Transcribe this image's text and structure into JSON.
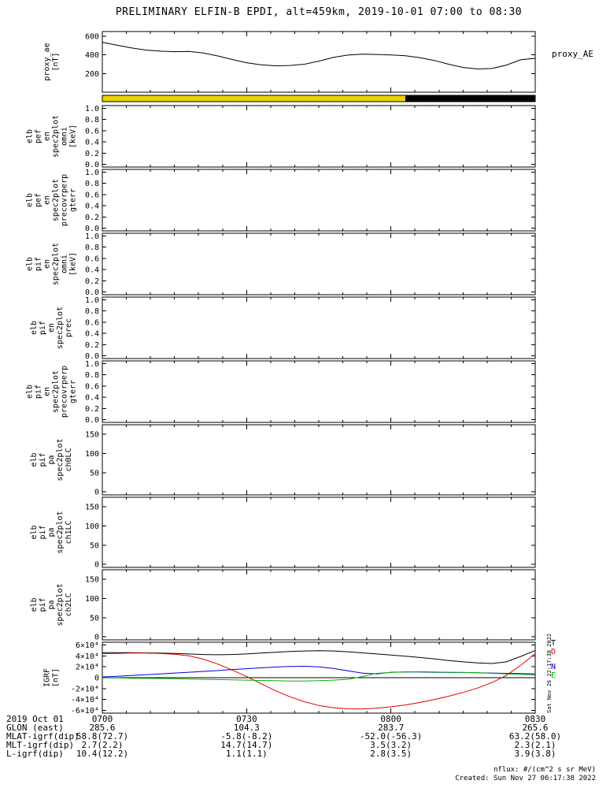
{
  "title": "PRELIMINARY ELFIN-B EPDI, alt=459km, 2019-10-01 07:00 to 08:30",
  "time_axis": {
    "start_min": 0,
    "end_min": 90,
    "major_ticks": [
      {
        "min": 0,
        "label": "0700"
      },
      {
        "min": 30,
        "label": "0730"
      },
      {
        "min": 60,
        "label": "0800"
      },
      {
        "min": 90,
        "label": "0830"
      }
    ]
  },
  "right_labels": {
    "proxy": "proxy_AE",
    "igrf": [
      {
        "label": "T",
        "color": "#000000"
      },
      {
        "label": "D",
        "color": "#dd0000"
      },
      {
        "label": "N",
        "color": "#0000dd"
      },
      {
        "label": "E",
        "color": "#00b400"
      }
    ]
  },
  "ytick_presets": {
    "proxy": [
      {
        "v": 200,
        "l": "200"
      },
      {
        "v": 400,
        "l": "400"
      },
      {
        "v": 600,
        "l": "600"
      }
    ],
    "frac": [
      {
        "v": 0.0,
        "l": "0.0"
      },
      {
        "v": 0.2,
        "l": "0.2"
      },
      {
        "v": 0.4,
        "l": "0.4"
      },
      {
        "v": 0.6,
        "l": "0.6"
      },
      {
        "v": 0.8,
        "l": "0.8"
      },
      {
        "v": 1.0,
        "l": "1.0"
      }
    ],
    "pa": [
      {
        "v": 0,
        "l": "0"
      },
      {
        "v": 50,
        "l": "50"
      },
      {
        "v": 100,
        "l": "100"
      },
      {
        "v": 150,
        "l": "150"
      }
    ],
    "igrf": [
      {
        "v": -60000,
        "l": "-6×10⁴"
      },
      {
        "v": -40000,
        "l": "-4×10⁴"
      },
      {
        "v": -20000,
        "l": "-2×10⁴"
      },
      {
        "v": 0,
        "l": "0"
      },
      {
        "v": 20000,
        "l": "2×10⁴"
      },
      {
        "v": 40000,
        "l": "4×10⁴"
      },
      {
        "v": 60000,
        "l": "6×10⁴"
      }
    ]
  },
  "panels": [
    {
      "id": "proxy-ae",
      "type": "line",
      "ylabel_lines": [
        "proxy_ae",
        "[nT]"
      ],
      "yticks": "proxy",
      "ylim": [
        0,
        650
      ],
      "chart": 0
    },
    {
      "id": "status-bar",
      "type": "colorbar",
      "chart": 1
    },
    {
      "id": "elb-pef-en-omni",
      "type": "empty",
      "ylabel_lines": [
        "elb",
        "pef",
        "en",
        "spec2plot",
        "omni",
        "[keV]"
      ],
      "yticks": "frac",
      "ylim": [
        -0.05,
        1.05
      ]
    },
    {
      "id": "elb-pef-en-precovrperp-gterr",
      "type": "empty",
      "ylabel_lines": [
        "elb",
        "pef",
        "en",
        "spec2plot",
        "precovrperp",
        "gterr"
      ],
      "yticks": "frac",
      "ylim": [
        -0.05,
        1.05
      ]
    },
    {
      "id": "elb-pif-en-omni",
      "type": "empty",
      "ylabel_lines": [
        "elb",
        "pif",
        "en",
        "spec2plot",
        "omni",
        "[keV]"
      ],
      "yticks": "frac",
      "ylim": [
        -0.05,
        1.05
      ]
    },
    {
      "id": "elb-pif-en-prec",
      "type": "empty",
      "ylabel_lines": [
        "elb",
        "pif",
        "en",
        "spec2plot",
        "prec"
      ],
      "yticks": "frac",
      "ylim": [
        -0.05,
        1.05
      ]
    },
    {
      "id": "elb-pif-en-precovrperp-gterr",
      "type": "empty",
      "ylabel_lines": [
        "elb",
        "pif",
        "en",
        "spec2plot",
        "precovrperp",
        "gterr"
      ],
      "yticks": "frac",
      "ylim": [
        -0.05,
        1.05
      ]
    },
    {
      "id": "elb-pif-pa-ch0LC",
      "type": "empty",
      "ylabel_lines": [
        "elb",
        "pif",
        "pa",
        "spec2plot",
        "ch0LC"
      ],
      "yticks": "pa",
      "ylim": [
        -8,
        175
      ]
    },
    {
      "id": "elb-pif-pa-ch1LC",
      "type": "empty",
      "ylabel_lines": [
        "elb",
        "pif",
        "pa",
        "spec2plot",
        "ch1LC"
      ],
      "yticks": "pa",
      "ylim": [
        -8,
        175
      ]
    },
    {
      "id": "elb-pif-pa-ch2LC",
      "type": "empty",
      "ylabel_lines": [
        "elb",
        "pif",
        "pa",
        "spec2plot",
        "ch2LC"
      ],
      "yticks": "pa",
      "ylim": [
        -8,
        175
      ]
    },
    {
      "id": "igrf",
      "type": "line",
      "ylabel_lines": [
        "IGRF",
        "[nT]"
      ],
      "yticks": "igrf",
      "ylim": [
        -65000,
        65000
      ],
      "chart": 2,
      "zero_line": true
    }
  ],
  "chart_data": [
    {
      "type": "line",
      "title": "proxy_AE",
      "ylabel": "proxy_ae [nT]",
      "xlim": [
        0,
        90
      ],
      "ylim": [
        0,
        650
      ],
      "x": [
        0,
        3,
        6,
        9,
        12,
        15,
        18,
        21,
        24,
        27,
        30,
        33,
        36,
        39,
        42,
        45,
        48,
        51,
        54,
        57,
        60,
        63,
        66,
        69,
        72,
        75,
        78,
        81,
        84,
        87,
        90
      ],
      "series": [
        {
          "name": "proxy_AE",
          "color": "#000000",
          "values": [
            535,
            505,
            475,
            452,
            440,
            434,
            437,
            420,
            388,
            350,
            316,
            293,
            283,
            286,
            300,
            333,
            372,
            398,
            407,
            404,
            399,
            391,
            371,
            340,
            300,
            265,
            249,
            254,
            290,
            348,
            363
          ]
        }
      ]
    },
    {
      "type": "segment-bar",
      "title": "status-bar",
      "xlim": [
        0,
        90
      ],
      "segments": [
        {
          "start": 0,
          "end": 63,
          "color": "#e8d500"
        },
        {
          "start": 63,
          "end": 90,
          "color": "#000000"
        }
      ]
    },
    {
      "type": "line",
      "title": "IGRF [nT]",
      "xlim": [
        0,
        90
      ],
      "ylim": [
        -65000,
        65000
      ],
      "x": [
        0,
        3,
        6,
        9,
        12,
        15,
        18,
        21,
        24,
        27,
        30,
        33,
        36,
        39,
        42,
        45,
        48,
        51,
        54,
        57,
        60,
        63,
        66,
        69,
        72,
        75,
        78,
        81,
        84,
        87,
        90
      ],
      "series": [
        {
          "name": "T",
          "color": "#000000",
          "values": [
            46000,
            46000,
            45800,
            45500,
            45000,
            44500,
            43500,
            42500,
            42000,
            42500,
            43500,
            45000,
            46500,
            48000,
            49000,
            49500,
            49000,
            47500,
            45500,
            43500,
            41500,
            39500,
            37000,
            34500,
            31500,
            29000,
            27000,
            26000,
            29000,
            39000,
            50000
          ]
        },
        {
          "name": "D",
          "color": "#dd0000",
          "values": [
            44000,
            44500,
            45000,
            45000,
            44500,
            43000,
            40000,
            34000,
            25000,
            14000,
            2000,
            -11000,
            -24000,
            -35000,
            -44000,
            -51000,
            -55000,
            -57000,
            -57500,
            -56000,
            -53500,
            -50000,
            -45500,
            -40000,
            -34000,
            -27000,
            -19000,
            -9000,
            4000,
            23000,
            44000
          ]
        },
        {
          "name": "N",
          "color": "#0000dd",
          "values": [
            1500,
            2500,
            4000,
            5500,
            7000,
            8500,
            10000,
            11500,
            13000,
            15000,
            16500,
            18000,
            19500,
            20500,
            21000,
            20000,
            17000,
            12500,
            8500,
            7000,
            10000,
            10500,
            10500,
            10000,
            9500,
            9500,
            9000,
            8500,
            8000,
            7500,
            7000
          ]
        },
        {
          "name": "E",
          "color": "#00b400",
          "values": [
            -500,
            -500,
            -1000,
            -1000,
            -1500,
            -2000,
            -2500,
            -3000,
            -3500,
            -4000,
            -4500,
            -5000,
            -5500,
            -6000,
            -6000,
            -5500,
            -4500,
            -3000,
            2000,
            8000,
            9500,
            10500,
            11000,
            10500,
            10000,
            9500,
            9000,
            8000,
            7000,
            6000,
            5000
          ]
        }
      ]
    }
  ],
  "footer": {
    "rows": [
      {
        "label": "2019 Oct 01",
        "values": [
          "0700",
          "0730",
          "0800",
          "0830"
        ]
      },
      {
        "label": "GLON (east)",
        "values": [
          "285.6",
          "104.3",
          "283.7",
          "265.6"
        ]
      },
      {
        "label": "MLAT-igrf(dip)",
        "values": [
          "58.8(72.7)",
          "-5.8(-8.2)",
          "-52.0(-56.3)",
          "63.2(58.0)"
        ]
      },
      {
        "label": "MLT-igrf(dip)",
        "values": [
          "2.7(2.2)",
          "14.7(14.7)",
          "3.5(3.2)",
          "2.3(2.1)"
        ]
      },
      {
        "label": "L-igrf(dip)",
        "values": [
          "10.4(12.2)",
          "1.1(1.1)",
          "2.8(3.5)",
          "3.9(3.8)"
        ]
      }
    ]
  },
  "notes": {
    "nflux": "nflux: #/(cm^2 s sr MeV)",
    "created": "Created: Sun Nov 27 06:17:38 2022",
    "side_timestamp": "Sat Nov 26 22:17:38 2022"
  }
}
